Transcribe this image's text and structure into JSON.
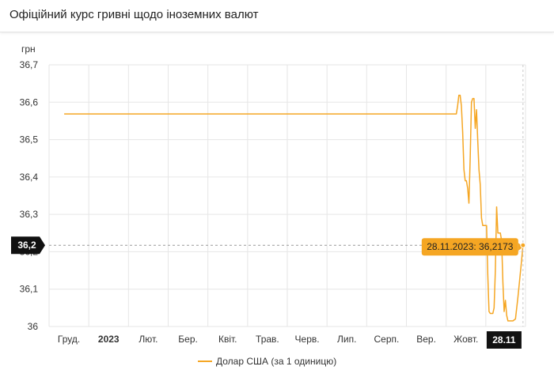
{
  "header": {
    "title": "Офіційний курс гривні щодо іноземних валют"
  },
  "chart_data": {
    "type": "line",
    "ylabel": "грн",
    "ylim": [
      36.0,
      36.7
    ],
    "y_ticks": [
      "36,7",
      "36,6",
      "36,5",
      "36,4",
      "36,3",
      "36,2",
      "36,1",
      "36"
    ],
    "x_ticks": [
      "Груд.",
      "2023",
      "Лют.",
      "Бер.",
      "Квіт.",
      "Трав.",
      "Черв.",
      "Лип.",
      "Серп.",
      "Вер.",
      "Жовт.",
      "28.11"
    ],
    "grid": true,
    "legend_position": "bottom",
    "crosshair": {
      "y_label": "36,2",
      "x_label": "28.11"
    },
    "tooltip": "28.11.2023: 36,2173",
    "series": [
      {
        "name": "Долар США (за 1 одиницю)",
        "color": "#f5a623",
        "points": [
          [
            "2022-11-28",
            36.5686
          ],
          [
            "2023-10-05",
            36.5686
          ],
          [
            "2023-10-06",
            36.5686
          ],
          [
            "2023-10-07",
            36.59
          ],
          [
            "2023-10-08",
            36.6186
          ],
          [
            "2023-10-09",
            36.6186
          ],
          [
            "2023-10-10",
            36.59
          ],
          [
            "2023-10-11",
            36.52
          ],
          [
            "2023-10-12",
            36.42
          ],
          [
            "2023-10-13",
            36.39
          ],
          [
            "2023-10-14",
            36.39
          ],
          [
            "2023-10-15",
            36.37
          ],
          [
            "2023-10-16",
            36.33
          ],
          [
            "2023-10-17",
            36.45
          ],
          [
            "2023-10-18",
            36.6
          ],
          [
            "2023-10-19",
            36.61
          ],
          [
            "2023-10-20",
            36.61
          ],
          [
            "2023-10-21",
            36.53
          ],
          [
            "2023-10-22",
            36.58
          ],
          [
            "2023-10-23",
            36.5
          ],
          [
            "2023-10-24",
            36.42
          ],
          [
            "2023-10-25",
            36.38
          ],
          [
            "2023-10-26",
            36.29
          ],
          [
            "2023-10-27",
            36.27
          ],
          [
            "2023-10-28",
            36.27
          ],
          [
            "2023-10-30",
            36.27
          ],
          [
            "2023-10-31",
            36.14
          ],
          [
            "2023-11-01",
            36.04
          ],
          [
            "2023-11-02",
            36.035
          ],
          [
            "2023-11-04",
            36.035
          ],
          [
            "2023-11-05",
            36.05
          ],
          [
            "2023-11-06",
            36.15
          ],
          [
            "2023-11-07",
            36.32
          ],
          [
            "2023-11-08",
            36.25
          ],
          [
            "2023-11-10",
            36.25
          ],
          [
            "2023-11-11",
            36.23
          ],
          [
            "2023-11-12",
            36.12
          ],
          [
            "2023-11-13",
            36.04
          ],
          [
            "2023-11-14",
            36.07
          ],
          [
            "2023-11-15",
            36.03
          ],
          [
            "2023-11-16",
            36.015
          ],
          [
            "2023-11-18",
            36.015
          ],
          [
            "2023-11-20",
            36.015
          ],
          [
            "2023-11-22",
            36.02
          ],
          [
            "2023-11-24",
            36.08
          ],
          [
            "2023-11-27",
            36.18
          ],
          [
            "2023-11-28",
            36.2173
          ]
        ]
      }
    ]
  }
}
